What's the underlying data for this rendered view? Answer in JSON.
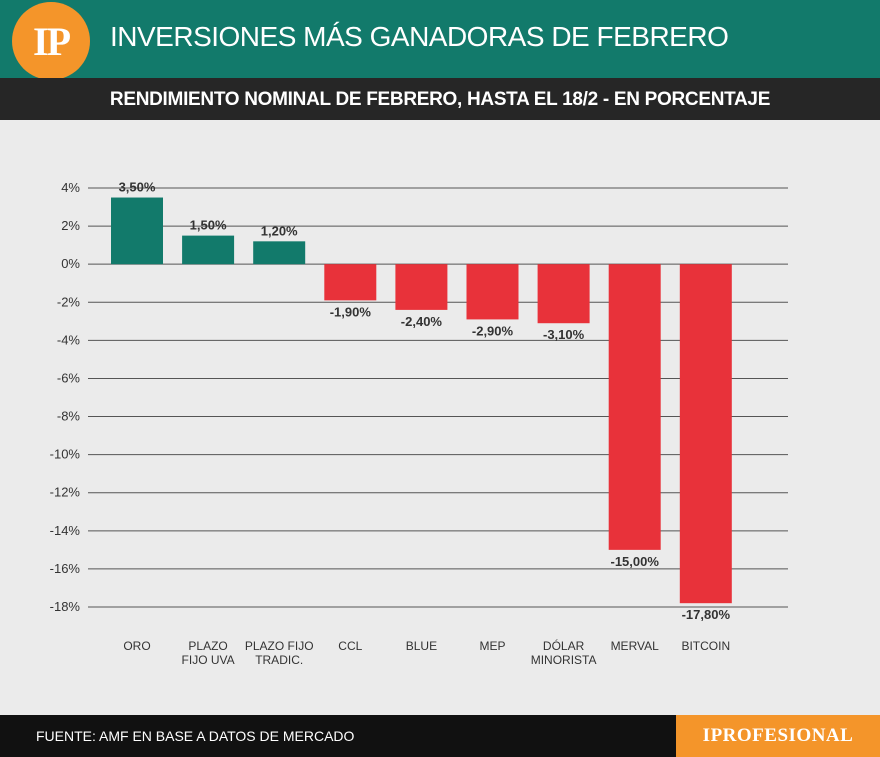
{
  "header": {
    "logo": "IP",
    "title": "INVERSIONES MÁS GANADORAS DE FEBRERO"
  },
  "subheader": {
    "title": "RENDIMIENTO NOMINAL DE FEBRERO, HASTA EL 18/2 - EN PORCENTAJE"
  },
  "footer": {
    "source": "FUENTE: AMF EN BASE A DATOS DE MERCADO",
    "brand": "IPROFESIONAL"
  },
  "colors": {
    "positive": "#127a6b",
    "negative": "#e8323a",
    "header": "#127a6b",
    "accent": "#f4952a"
  },
  "chart_data": {
    "type": "bar",
    "title": "RENDIMIENTO NOMINAL DE FEBRERO, HASTA EL 18/2 - EN PORCENTAJE",
    "categories": [
      [
        "ORO"
      ],
      [
        "PLAZO",
        "FIJO UVA"
      ],
      [
        "PLAZO FIJO",
        "TRADIC."
      ],
      [
        "CCL"
      ],
      [
        "BLUE"
      ],
      [
        "MEP"
      ],
      [
        "DÓLAR",
        "MINORISTA"
      ],
      [
        "MERVAL"
      ],
      [
        "BITCOIN"
      ]
    ],
    "values": [
      3.5,
      1.5,
      1.2,
      -1.9,
      -2.4,
      -2.9,
      -3.1,
      -15.0,
      -17.8
    ],
    "value_labels": [
      "3,50%",
      "1,50%",
      "1,20%",
      "-1,90%",
      "-2,40%",
      "-2,90%",
      "-3,10%",
      "-15,00%",
      "-17,80%"
    ],
    "yticks": [
      4,
      2,
      0,
      -2,
      -4,
      -6,
      -8,
      -10,
      -12,
      -14,
      -16,
      -18
    ],
    "ytick_labels": [
      "4%",
      "2%",
      "0%",
      "-2%",
      "-4%",
      "-6%",
      "-8%",
      "-10%",
      "-12%",
      "-14%",
      "-16%",
      "-18%"
    ],
    "ylim": [
      -18,
      4
    ],
    "grid": true,
    "xlabel": "",
    "ylabel": ""
  }
}
